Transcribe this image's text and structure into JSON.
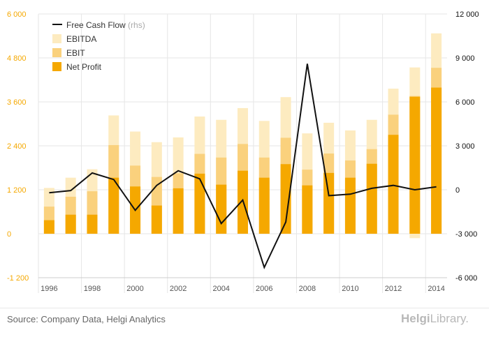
{
  "chart_data": {
    "type": "bar",
    "categories": [
      "1996",
      "1997",
      "1998",
      "1999",
      "2000",
      "2001",
      "2002",
      "2003",
      "2004",
      "2005",
      "2006",
      "2007",
      "2008",
      "2009",
      "2010",
      "2011",
      "2012",
      "2013",
      "2014"
    ],
    "x_tick_labels": [
      "1996",
      "1998",
      "2000",
      "2002",
      "2004",
      "2006",
      "2008",
      "2010",
      "2012",
      "2014"
    ],
    "series": [
      {
        "name": "EBITDA",
        "kind": "bar",
        "color": "#FDEBC0",
        "values": [
          1250,
          1530,
          1760,
          3230,
          2790,
          2500,
          2630,
          3200,
          3110,
          3430,
          3080,
          3730,
          2740,
          3030,
          2820,
          3110,
          3960,
          4540,
          5470
        ]
      },
      {
        "name": "EBIT",
        "kind": "bar",
        "color": "#FAD17D",
        "values": [
          740,
          1010,
          1160,
          2420,
          1860,
          1550,
          1650,
          2180,
          2080,
          2450,
          2080,
          2620,
          1750,
          2190,
          2000,
          2310,
          3250,
          3760,
          4530
        ]
      },
      {
        "name": "Net Profit",
        "kind": "bar",
        "color": "#F5A800",
        "values": [
          370,
          520,
          520,
          1530,
          1290,
          770,
          1240,
          1640,
          1340,
          1720,
          1530,
          1900,
          1320,
          1660,
          1530,
          1910,
          2700,
          3740,
          3990
        ]
      },
      {
        "name": "Free Cash Flow",
        "kind": "line",
        "axis": "right",
        "color": "#111111",
        "values": [
          -200,
          -50,
          1150,
          700,
          -1400,
          300,
          1300,
          750,
          -2300,
          -700,
          -5300,
          -2200,
          8600,
          -400,
          -300,
          100,
          300,
          0,
          200
        ]
      }
    ],
    "negative_bar_2013": -120,
    "ylim_left": [
      -1200,
      6000
    ],
    "ylim_right": [
      -6000,
      12000
    ],
    "y_ticks_left": [
      "6 000",
      "4 800",
      "3 600",
      "2 400",
      "1 200",
      "0",
      "-1 200"
    ],
    "y_ticks_right": [
      "12 000",
      "9 000",
      "6 000",
      "3 000",
      "0",
      "-3 000",
      "-6 000"
    ],
    "legend_position": "top-left",
    "legend_labels": {
      "fcf": "Free Cash Flow",
      "fcf_suffix": "(rhs)",
      "ebitda": "EBITDA",
      "ebit": "EBIT",
      "np": "Net Profit"
    },
    "colors": {
      "left_axis": "#F5A800",
      "right_axis": "#111111",
      "grid": "#e6e6e6"
    }
  },
  "footer": {
    "source": "Source: Company Data, Helgi Analytics",
    "logo_first": "Helgi",
    "logo_second": "Library."
  }
}
